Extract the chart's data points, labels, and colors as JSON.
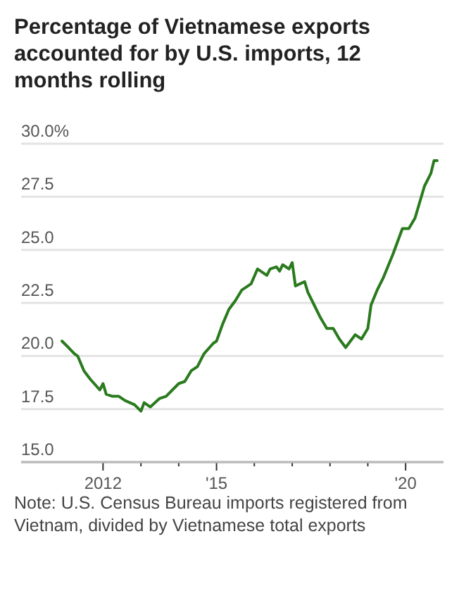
{
  "chart_data": {
    "type": "line",
    "title": "Percentage of Vietnamese exports accounted for by U.S. imports, 12 months rolling",
    "x": [
      "2010-12",
      "2011-02",
      "2011-04",
      "2011-05",
      "2011-07",
      "2011-09",
      "2011-12",
      "2012-01",
      "2012-02",
      "2012-04",
      "2012-06",
      "2012-08",
      "2012-11",
      "2013-01",
      "2013-02",
      "2013-04",
      "2013-07",
      "2013-09",
      "2014-01",
      "2014-03",
      "2014-05",
      "2014-07",
      "2014-09",
      "2014-12",
      "2015-01",
      "2015-03",
      "2015-05",
      "2015-07",
      "2015-09",
      "2015-12",
      "2016-02",
      "2016-05",
      "2016-06",
      "2016-08",
      "2016-09",
      "2016-10",
      "2016-12",
      "2017-01",
      "2017-02",
      "2017-05",
      "2017-06",
      "2017-08",
      "2017-10",
      "2017-12",
      "2018-02",
      "2018-04",
      "2018-06",
      "2018-09",
      "2018-11",
      "2019-01",
      "2019-02",
      "2019-04",
      "2019-06",
      "2019-09",
      "2019-12",
      "2020-02",
      "2020-04",
      "2020-07",
      "2020-09",
      "2020-10",
      "2020-11"
    ],
    "series": [
      {
        "color": "#2a7a1e",
        "values": [
          20.7,
          20.4,
          20.1,
          20.0,
          19.3,
          18.9,
          18.4,
          18.7,
          18.2,
          18.1,
          18.1,
          17.9,
          17.7,
          17.4,
          17.8,
          17.6,
          18.0,
          18.1,
          18.7,
          18.8,
          19.3,
          19.5,
          20.1,
          20.6,
          20.7,
          21.5,
          22.2,
          22.6,
          23.1,
          23.4,
          24.1,
          23.8,
          24.1,
          24.2,
          24.0,
          24.3,
          24.1,
          24.4,
          23.3,
          23.5,
          23.0,
          22.4,
          21.8,
          21.3,
          21.3,
          20.8,
          20.4,
          21.0,
          20.8,
          21.3,
          22.4,
          23.1,
          23.7,
          24.8,
          26.0,
          26.0,
          26.5,
          28.0,
          28.6,
          29.2,
          29.2
        ]
      }
    ],
    "xlim": [
      "2009-11",
      "2021-01"
    ],
    "xticks": [
      {
        "value": "2012-01",
        "label": "2012"
      },
      {
        "value": "2013-01",
        "label": null
      },
      {
        "value": "2014-01",
        "label": null
      },
      {
        "value": "2015-01",
        "label": "'15"
      },
      {
        "value": "2016-01",
        "label": null
      },
      {
        "value": "2017-01",
        "label": null
      },
      {
        "value": "2018-01",
        "label": null
      },
      {
        "value": "2019-01",
        "label": null
      },
      {
        "value": "2020-01",
        "label": "'20"
      }
    ],
    "ylim": [
      15,
      30
    ],
    "yticks": [
      {
        "value": 15,
        "label": "15.0"
      },
      {
        "value": 17.5,
        "label": "17.5"
      },
      {
        "value": 20,
        "label": "20.0"
      },
      {
        "value": 22.5,
        "label": "22.5"
      },
      {
        "value": 25,
        "label": "25.0"
      },
      {
        "value": 27.5,
        "label": "27.5"
      },
      {
        "value": 30,
        "label": "30.0%"
      }
    ],
    "grid": "y",
    "annotations": [
      "Note: U.S. Census Bureau imports registered from Vietnam, divided by Vietnamese total exports"
    ]
  }
}
